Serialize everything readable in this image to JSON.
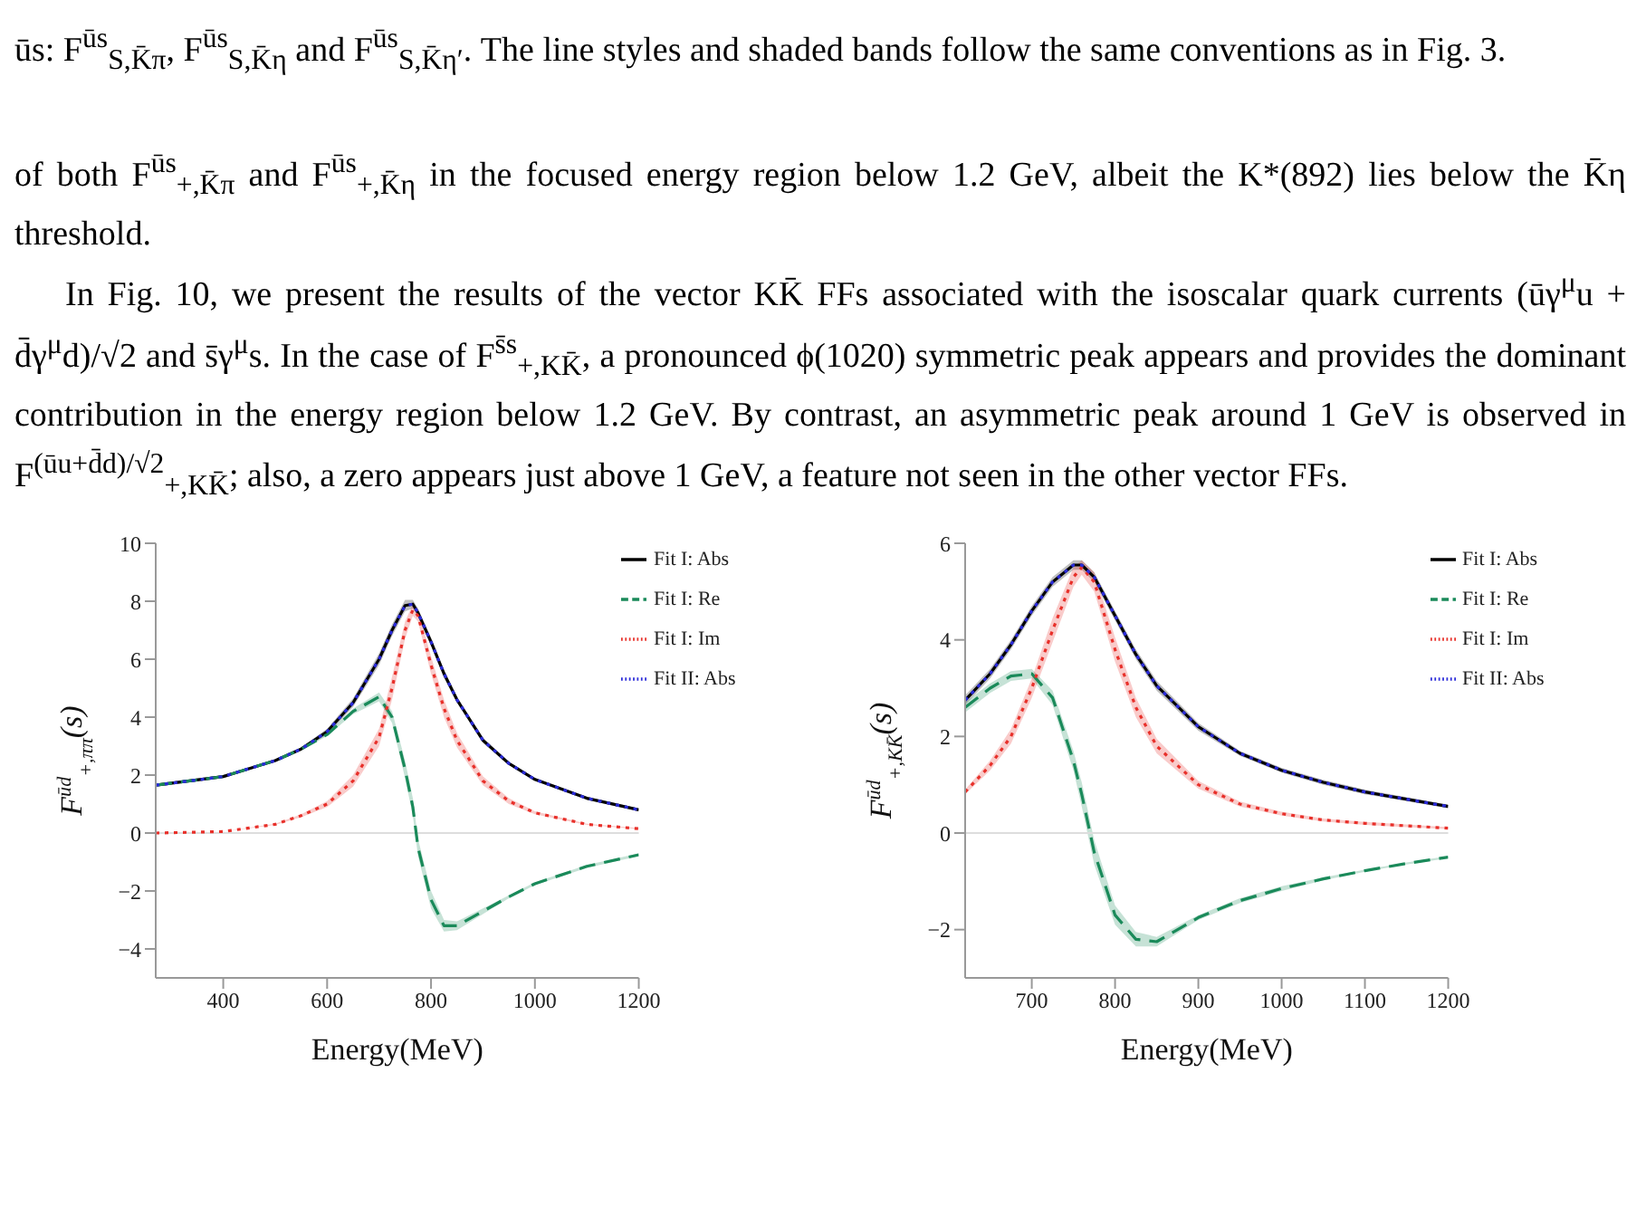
{
  "chart_data": [
    {
      "type": "other",
      "annotations": [
        "ūs: F$^{ūs}$$_{S,K̄π}$, F$^{ūs}$$_{S,K̄η}$ and F$^{ūs}$$_{S,K̄η′}$. The line styles and shaded bands follow the same conventions as in Fig. 3.",
        "of both F$^{ūs}$$_{+,K̄π}$ and F$^{ūs}$$_{+,K̄η}$ in the focused energy region below 1.2 GeV, albeit the K*(892) lies below the K̄η threshold.",
        "In Fig. 10, we present the results of the vector KK̄ FFs associated with the isoscalar quark currents (ūγ$^{μ}$u + d̄γ$^{μ}$d)/√2 and s̄γ$^{μ}$s. In the case of F$^{s̄s}$$_{+,KK̄}$, a pronounced ϕ(1020) symmetric peak appears and provides the dominant contribution in the energy region below 1.2 GeV. By contrast, an asymmetric peak around 1 GeV is observed in F$^{(ūu+d̄d)/√2}$$_{+,KK̄}$; also, a zero appears just above 1 GeV, a feature not seen in the other vector FFs."
      ]
    },
    {
      "type": "line",
      "xlabel": "Energy(MeV)",
      "ylabel": "F$^{ūd}$$_{+,ππ}$(s)",
      "xlim": [
        270,
        1200
      ],
      "xticks": [
        400,
        600,
        800,
        1000,
        1200
      ],
      "ylim": [
        -5,
        10
      ],
      "yticks": [
        -4,
        -2,
        0,
        2,
        4,
        6,
        8,
        10
      ],
      "legend": "top right",
      "ref_lines": [
        {
          "axis": "y",
          "value": 0,
          "color": "#dddddd"
        }
      ],
      "x": [
        270,
        400,
        500,
        550,
        600,
        650,
        700,
        725,
        750,
        765,
        775,
        800,
        825,
        850,
        900,
        950,
        1000,
        1100,
        1200
      ],
      "series": [
        {
          "name": "Fit  I: Abs",
          "color": "#000000",
          "line_style": "solid",
          "values": [
            1.65,
            1.95,
            2.5,
            2.9,
            3.5,
            4.5,
            6.0,
            7.0,
            7.85,
            7.9,
            7.6,
            6.6,
            5.5,
            4.6,
            3.2,
            2.4,
            1.85,
            1.2,
            0.8
          ],
          "lower": [
            1.6,
            1.9,
            2.45,
            2.85,
            3.4,
            4.35,
            5.8,
            6.8,
            7.65,
            7.75,
            7.45,
            6.45,
            5.35,
            4.5,
            3.1,
            2.35,
            1.8,
            1.15,
            0.75
          ],
          "upper": [
            1.7,
            2.0,
            2.55,
            2.95,
            3.6,
            4.65,
            6.2,
            7.2,
            8.05,
            8.05,
            7.75,
            6.75,
            5.65,
            4.7,
            3.3,
            2.45,
            1.9,
            1.25,
            0.85
          ]
        },
        {
          "name": "Fit  I: Re",
          "color": "#1a8a5a",
          "line_style": "dashed",
          "values": [
            1.65,
            1.95,
            2.5,
            2.9,
            3.4,
            4.2,
            4.7,
            4.0,
            2.2,
            0.9,
            -0.5,
            -2.3,
            -3.2,
            -3.2,
            -2.7,
            -2.2,
            -1.75,
            -1.15,
            -0.75
          ],
          "lower": [
            1.65,
            1.95,
            2.5,
            2.85,
            3.35,
            4.1,
            4.55,
            3.8,
            1.9,
            0.6,
            -0.8,
            -2.6,
            -3.4,
            -3.35,
            -2.8,
            -2.25,
            -1.8,
            -1.2,
            -0.8
          ],
          "upper": [
            1.65,
            1.95,
            2.5,
            2.95,
            3.45,
            4.3,
            4.85,
            4.2,
            2.5,
            1.2,
            -0.2,
            -2.0,
            -3.0,
            -3.05,
            -2.6,
            -2.15,
            -1.7,
            -1.1,
            -0.7
          ]
        },
        {
          "name": "Fit  I: Im",
          "color": "#e8302a",
          "line_style": "dotted",
          "values": [
            0,
            0.05,
            0.3,
            0.6,
            1.0,
            1.8,
            3.3,
            5.0,
            7.0,
            7.7,
            7.5,
            5.8,
            4.3,
            3.2,
            1.8,
            1.1,
            0.7,
            0.3,
            0.15
          ],
          "lower": [
            0,
            0.05,
            0.28,
            0.55,
            0.9,
            1.6,
            3.0,
            4.6,
            6.7,
            7.5,
            7.3,
            5.5,
            4.0,
            2.95,
            1.65,
            1.0,
            0.65,
            0.28,
            0.13
          ],
          "upper": [
            0,
            0.05,
            0.32,
            0.65,
            1.1,
            2.0,
            3.6,
            5.4,
            7.3,
            7.9,
            7.7,
            6.1,
            4.6,
            3.45,
            1.95,
            1.2,
            0.75,
            0.32,
            0.17
          ]
        },
        {
          "name": "Fit  II: Abs",
          "color": "#2b2bd9",
          "line_style": "dotted",
          "values": [
            1.65,
            1.95,
            2.5,
            2.9,
            3.5,
            4.5,
            6.0,
            7.0,
            7.85,
            7.9,
            7.6,
            6.6,
            5.5,
            4.6,
            3.2,
            2.4,
            1.85,
            1.2,
            0.8
          ]
        }
      ]
    },
    {
      "type": "line",
      "xlabel": "Energy(MeV)",
      "ylabel": "F$^{ūd}$$_{+,KK̄}$(s)",
      "xlim": [
        620,
        1200
      ],
      "xticks": [
        700,
        800,
        900,
        1000,
        1100,
        1200
      ],
      "ylim": [
        -3,
        6
      ],
      "yticks": [
        -2,
        0,
        2,
        4,
        6
      ],
      "legend": "top right",
      "ref_lines": [
        {
          "axis": "y",
          "value": 0,
          "color": "#dddddd"
        }
      ],
      "x": [
        620,
        650,
        675,
        700,
        725,
        750,
        760,
        775,
        800,
        825,
        850,
        900,
        950,
        1000,
        1050,
        1100,
        1150,
        1200
      ],
      "series": [
        {
          "name": "Fit  I: Abs",
          "color": "#000000",
          "line_style": "solid",
          "values": [
            2.75,
            3.3,
            3.9,
            4.6,
            5.2,
            5.55,
            5.55,
            5.3,
            4.5,
            3.7,
            3.05,
            2.2,
            1.65,
            1.3,
            1.05,
            0.85,
            0.7,
            0.55
          ],
          "lower": [
            2.65,
            3.2,
            3.8,
            4.5,
            5.1,
            5.45,
            5.45,
            5.2,
            4.4,
            3.6,
            2.95,
            2.12,
            1.6,
            1.25,
            1.0,
            0.8,
            0.66,
            0.51
          ],
          "upper": [
            2.85,
            3.4,
            4.0,
            4.7,
            5.3,
            5.65,
            5.65,
            5.4,
            4.6,
            3.8,
            3.15,
            2.28,
            1.7,
            1.35,
            1.1,
            0.9,
            0.74,
            0.59
          ]
        },
        {
          "name": "Fit  I: Re",
          "color": "#1a8a5a",
          "line_style": "dashed",
          "values": [
            2.6,
            3.0,
            3.25,
            3.3,
            2.8,
            1.5,
            0.8,
            -0.4,
            -1.7,
            -2.2,
            -2.25,
            -1.75,
            -1.4,
            -1.15,
            -0.95,
            -0.78,
            -0.63,
            -0.5
          ],
          "lower": [
            2.5,
            2.9,
            3.15,
            3.2,
            2.65,
            1.3,
            0.55,
            -0.65,
            -1.9,
            -2.35,
            -2.35,
            -1.8,
            -1.45,
            -1.2,
            -0.98,
            -0.8,
            -0.65,
            -0.52
          ],
          "upper": [
            2.7,
            3.1,
            3.35,
            3.4,
            2.95,
            1.7,
            1.05,
            -0.15,
            -1.5,
            -2.05,
            -2.15,
            -1.7,
            -1.35,
            -1.1,
            -0.92,
            -0.76,
            -0.61,
            -0.48
          ]
        },
        {
          "name": "Fit  I: Im",
          "color": "#e8302a",
          "line_style": "dotted",
          "values": [
            0.85,
            1.4,
            2.0,
            3.0,
            4.2,
            5.3,
            5.5,
            5.2,
            3.8,
            2.6,
            1.8,
            1.0,
            0.6,
            0.4,
            0.27,
            0.2,
            0.15,
            0.1
          ],
          "lower": [
            0.8,
            1.3,
            1.85,
            2.8,
            3.95,
            5.1,
            5.35,
            5.0,
            3.55,
            2.4,
            1.65,
            0.92,
            0.55,
            0.36,
            0.24,
            0.17,
            0.12,
            0.08
          ],
          "upper": [
            0.9,
            1.5,
            2.15,
            3.2,
            4.45,
            5.5,
            5.65,
            5.4,
            4.05,
            2.8,
            1.95,
            1.08,
            0.65,
            0.44,
            0.3,
            0.23,
            0.18,
            0.12
          ]
        },
        {
          "name": "Fit  II: Abs",
          "color": "#2b2bd9",
          "line_style": "dotted",
          "values": [
            2.75,
            3.3,
            3.9,
            4.6,
            5.2,
            5.55,
            5.55,
            5.3,
            4.5,
            3.7,
            3.05,
            2.2,
            1.65,
            1.3,
            1.05,
            0.85,
            0.7,
            0.55
          ]
        }
      ]
    }
  ]
}
